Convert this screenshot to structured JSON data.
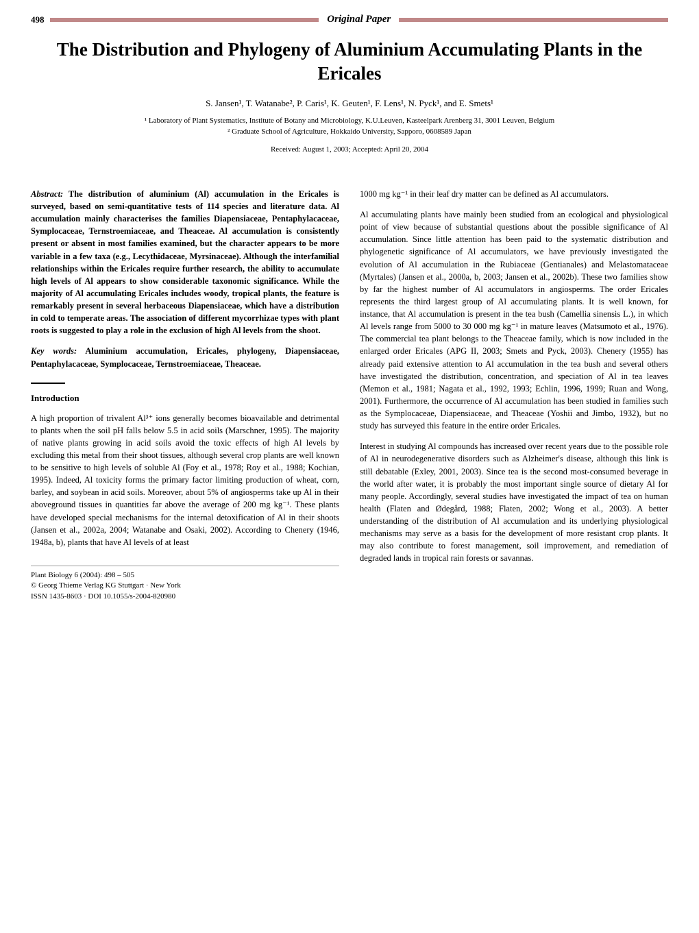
{
  "header": {
    "page_number": "498",
    "section_label": "Original Paper",
    "bar_color": "#c08888"
  },
  "title": "The Distribution and Phylogeny of Aluminium Accumulating Plants in the Ericales",
  "authors": "S. Jansen¹, T. Watanabe², P. Caris¹, K. Geuten¹, F. Lens¹, N. Pyck¹, and E. Smets¹",
  "affiliations": {
    "aff1": "¹ Laboratory of Plant Systematics, Institute of Botany and Microbiology, K.U.Leuven, Kasteelpark Arenberg 31, 3001 Leuven, Belgium",
    "aff2": "² Graduate School of Agriculture, Hokkaido University, Sapporo, 0608589 Japan"
  },
  "received": "Received: August 1, 2003; Accepted: April 20, 2004",
  "abstract": {
    "label": "Abstract:",
    "text": " The distribution of aluminium (Al) accumulation in the Ericales is surveyed, based on semi-quantitative tests of 114 species and literature data. Al accumulation mainly characterises the families Diapensiaceae, Pentaphylacaceae, Symplocaceae, Ternstroemiaceae, and Theaceae. Al accumulation is consistently present or absent in most families examined, but the character appears to be more variable in a few taxa (e.g., Lecythidaceae, Myrsinaceae). Although the interfamilial relationships within the Ericales require further research, the ability to accumulate high levels of Al appears to show considerable taxonomic significance. While the majority of Al accumulating Ericales includes woody, tropical plants, the feature is remarkably present in several herbaceous Diapensiaceae, which have a distribution in cold to temperate areas. The association of different mycorrhizae types with plant roots is suggested to play a role in the exclusion of high Al levels from the shoot."
  },
  "keywords": {
    "label": "Key words:",
    "text": " Aluminium accumulation, Ericales, phylogeny, Diapensiaceae, Pentaphylacaceae, Symplocaceae, Ternstroemiaceae, Theaceae."
  },
  "introduction": {
    "heading": "Introduction",
    "para1": "A high proportion of trivalent Al³⁺ ions generally becomes bioavailable and detrimental to plants when the soil pH falls below 5.5 in acid soils (Marschner, 1995). The majority of native plants growing in acid soils avoid the toxic effects of high Al levels by excluding this metal from their shoot tissues, although several crop plants are well known to be sensitive to high levels of soluble Al (Foy et al., 1978; Roy et al., 1988; Kochian, 1995). Indeed, Al toxicity forms the primary factor limiting production of wheat, corn, barley, and soybean in acid soils. Moreover, about 5% of angiosperms take up Al in their aboveground tissues in quantities far above the average of 200 mg kg⁻¹. These plants have developed special mechanisms for the internal detoxification of Al in their shoots (Jansen et al., 2002a, 2004; Watanabe and Osaki, 2002). According to Chenery (1946, 1948a, b), plants that have Al levels of at least"
  },
  "right_column": {
    "para1": "1000 mg kg⁻¹ in their leaf dry matter can be defined as Al accumulators.",
    "para2": "Al accumulating plants have mainly been studied from an ecological and physiological point of view because of substantial questions about the possible significance of Al accumulation. Since little attention has been paid to the systematic distribution and phylogenetic significance of Al accumulators, we have previously investigated the evolution of Al accumulation in the Rubiaceae (Gentianales) and Melastomataceae (Myrtales) (Jansen et al., 2000a, b, 2003; Jansen et al., 2002b). These two families show by far the highest number of Al accumulators in angiosperms. The order Ericales represents the third largest group of Al accumulating plants. It is well known, for instance, that Al accumulation is present in the tea bush (Camellia sinensis L.), in which Al levels range from 5000 to 30 000 mg kg⁻¹ in mature leaves (Matsumoto et al., 1976). The commercial tea plant belongs to the Theaceae family, which is now included in the enlarged order Ericales (APG II, 2003; Smets and Pyck, 2003). Chenery (1955) has already paid extensive attention to Al accumulation in the tea bush and several others have investigated the distribution, concentration, and speciation of Al in tea leaves (Memon et al., 1981; Nagata et al., 1992, 1993; Echlin, 1996, 1999; Ruan and Wong, 2001). Furthermore, the occurrence of Al accumulation has been studied in families such as the Symplocaceae, Diapensiaceae, and Theaceae (Yoshii and Jimbo, 1932), but no study has surveyed this feature in the entire order Ericales.",
    "para3": "Interest in studying Al compounds has increased over recent years due to the possible role of Al in neurodegenerative disorders such as Alzheimer's disease, although this link is still debatable (Exley, 2001, 2003). Since tea is the second most-consumed beverage in the world after water, it is probably the most important single source of dietary Al for many people. Accordingly, several studies have investigated the impact of tea on human health (Flaten and Ødegård, 1988; Flaten, 2002; Wong et al., 2003). A better understanding of the distribution of Al accumulation and its underlying physiological mechanisms may serve as a basis for the development of more resistant crop plants. It may also contribute to forest management, soil improvement, and remediation of degraded lands in tropical rain forests or savannas."
  },
  "footer": {
    "line1": "Plant Biology 6 (2004): 498 – 505",
    "line2": "© Georg Thieme Verlag KG Stuttgart · New York",
    "line3": "ISSN 1435-8603 · DOI 10.1055/s-2004-820980"
  },
  "styling": {
    "background_color": "#ffffff",
    "text_color": "#000000",
    "header_bar_color": "#c08888",
    "title_fontsize": 27,
    "body_fontsize": 12.5,
    "authors_fontsize": 13,
    "affiliations_fontsize": 11,
    "footer_fontsize": 11,
    "line_height": 1.45,
    "column_gap": 30
  }
}
